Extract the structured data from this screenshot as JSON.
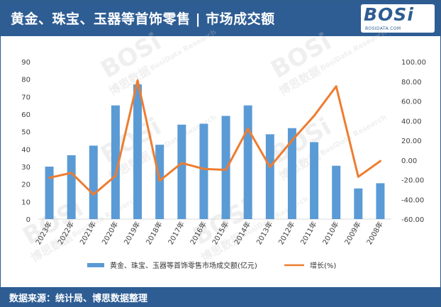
{
  "header": {
    "title": "黄金、珠宝、玉器等首饰零售 | 市场成交额",
    "logo_text": "BOSi",
    "logo_sub": "BOSIDATA.COM"
  },
  "footer": {
    "source": "数据来源：统计局、博思数据整理"
  },
  "watermark": {
    "brand": "BOSi",
    "cn": "博思数据",
    "en": "BosiData Research"
  },
  "colors": {
    "header_bg": "#2e5d93",
    "bar": "#5b9bd5",
    "line": "#ed7d31",
    "axis": "#d9d9d9"
  },
  "chart_data": {
    "type": "bar",
    "categories": [
      "2023年",
      "2022年",
      "2021年",
      "2020年",
      "2019年",
      "2018年",
      "2017年",
      "2016年",
      "2015年",
      "2014年",
      "2013年",
      "2012年",
      "2011年",
      "2010年",
      "2009年",
      "2008年"
    ],
    "series": [
      {
        "name": "黄金、珠宝、玉器等首饰零售市场成交额(亿元)",
        "type": "bar",
        "axis": "left",
        "values": [
          30,
          36.5,
          42,
          65,
          77,
          42.5,
          54,
          54.5,
          59,
          65,
          48.5,
          52,
          44,
          30.5,
          17.5,
          20.5
        ]
      },
      {
        "name": "增长(%)",
        "type": "line",
        "axis": "right",
        "values": [
          -18,
          -13,
          -35,
          -16,
          81,
          -21,
          -3,
          -9,
          -10,
          32,
          -7,
          20,
          45,
          75,
          -17,
          -1
        ]
      }
    ],
    "y_left": {
      "min": 0,
      "max": 90,
      "ticks": [
        "0",
        "10",
        "20",
        "30",
        "40",
        "50",
        "60",
        "70",
        "80",
        "90"
      ]
    },
    "y_right": {
      "min": -60,
      "max": 100,
      "ticks": [
        "-60.00",
        "-40.00",
        "-20.00",
        "0.00",
        "20.00",
        "40.00",
        "60.00",
        "80.00",
        "100.00"
      ]
    },
    "legend_position": "bottom",
    "grid": false
  }
}
